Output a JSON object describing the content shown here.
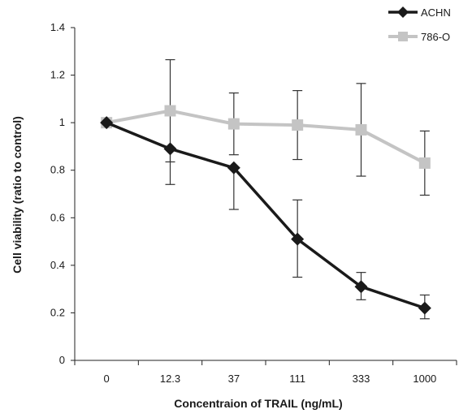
{
  "chart_data": {
    "type": "line",
    "title": "",
    "xlabel": "Concentraion of TRAIL (ng/mL)",
    "ylabel": "Cell viability (ratio to control)",
    "categories": [
      "0",
      "12.3",
      "37",
      "111",
      "333",
      "1000"
    ],
    "ylim": [
      0,
      1.4
    ],
    "yticks": [
      0,
      0.2,
      0.4,
      0.6,
      0.8,
      1,
      1.2,
      1.4
    ],
    "ytick_labels": [
      "0",
      "0.2",
      "0.4",
      "0.6",
      "0.8",
      "1",
      "1.2",
      "1.4"
    ],
    "grid": false,
    "legend_position": "top-right",
    "series": [
      {
        "name": "786-O",
        "color": "#c4c4c4",
        "marker": "square",
        "values": [
          1.0,
          1.05,
          0.995,
          0.99,
          0.97,
          0.83
        ],
        "err_high": [
          1.0,
          1.265,
          1.125,
          1.135,
          1.165,
          0.965
        ],
        "err_low": [
          1.0,
          0.835,
          0.865,
          0.845,
          0.775,
          0.695
        ]
      },
      {
        "name": "ACHN",
        "color": "#1a1a1a",
        "marker": "diamond",
        "values": [
          1.0,
          0.89,
          0.81,
          0.51,
          0.31,
          0.22
        ],
        "err_high": [
          1.0,
          0.89,
          0.81,
          0.675,
          0.37,
          0.275
        ],
        "err_low": [
          1.0,
          0.74,
          0.635,
          0.35,
          0.255,
          0.175
        ]
      }
    ]
  }
}
